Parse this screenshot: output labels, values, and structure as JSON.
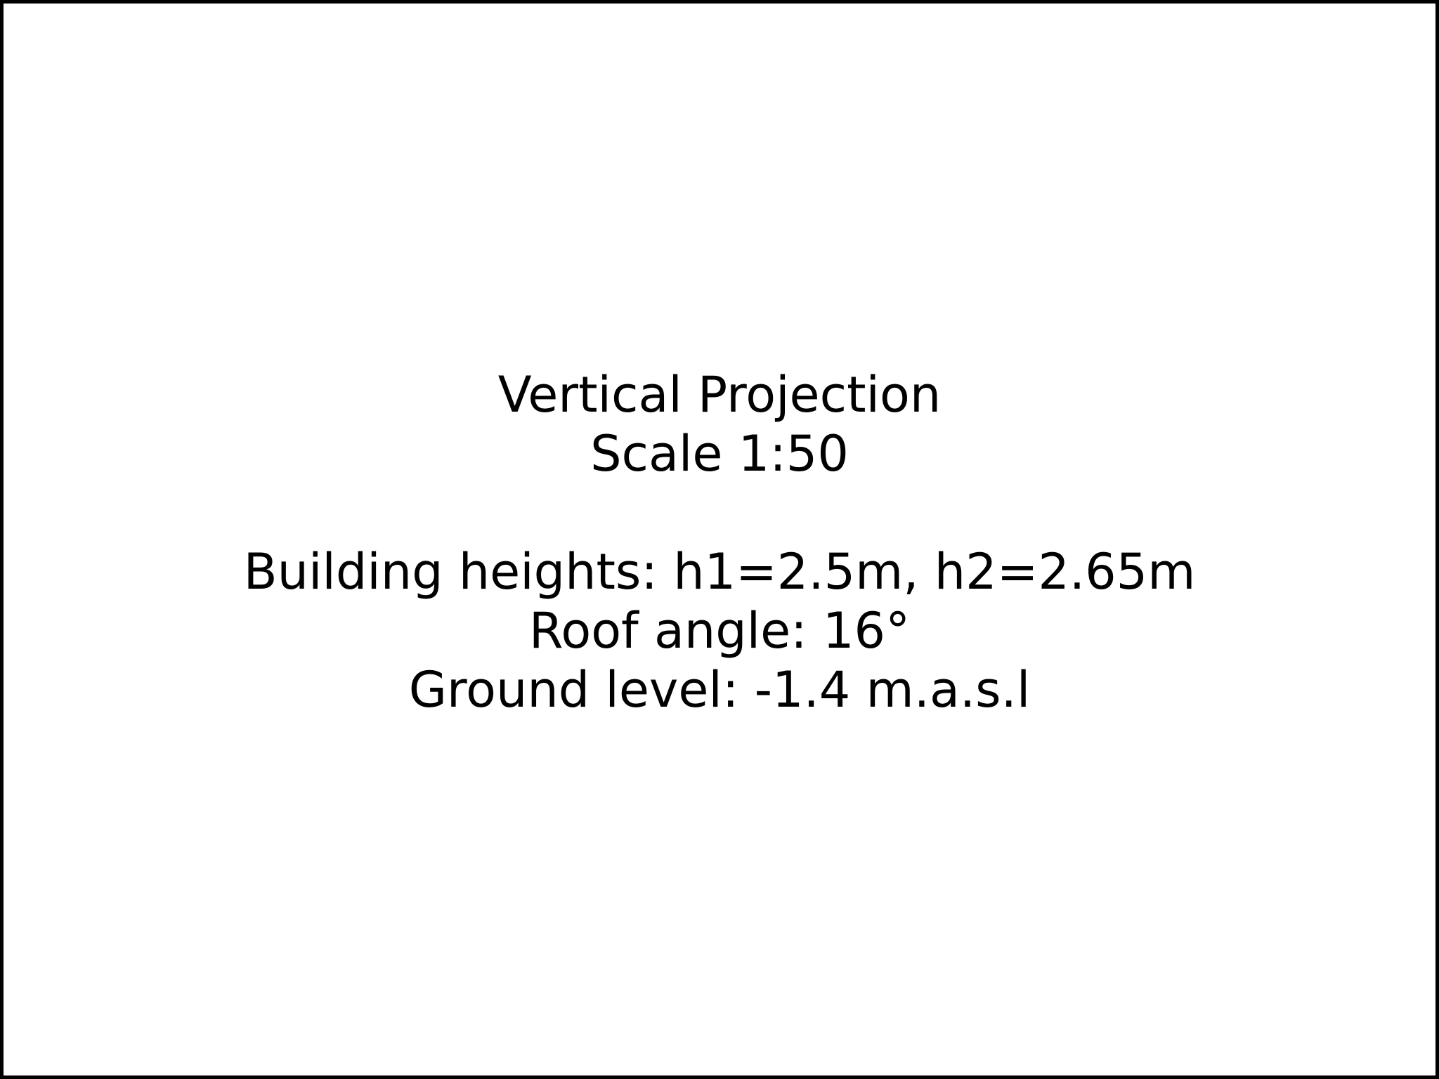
{
  "drawing": {
    "title": "Vertical Projection",
    "scale": "Scale 1:50",
    "building_heights": "Building heights: h1=2.5m, h2=2.65m",
    "roof_angle": "Roof angle: 16°",
    "ground_level": "Ground level: -1.4 m.a.s.l"
  }
}
